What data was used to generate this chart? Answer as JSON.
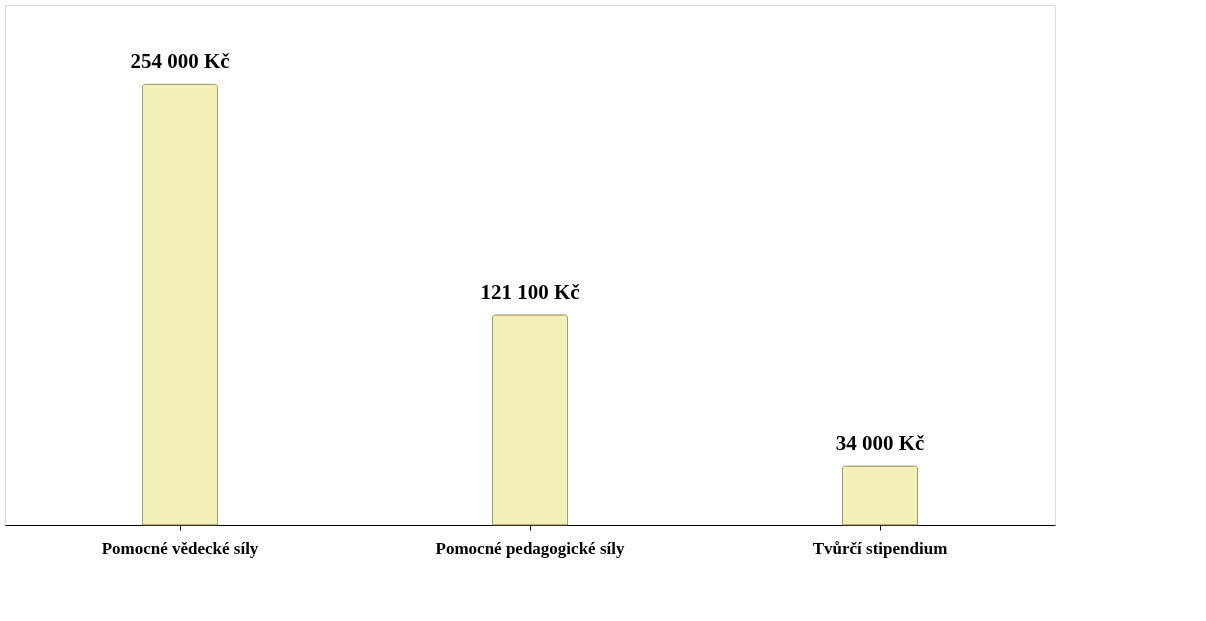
{
  "chart_data": {
    "type": "bar",
    "categories": [
      "Pomocné vědecké síly",
      "Pomocné pedagogické síly",
      "Tvůrčí stipendium"
    ],
    "values": [
      254000,
      121100,
      34000
    ],
    "value_labels": [
      "254 000 Kč",
      "121 100 Kč",
      "34 000 Kč"
    ],
    "color": "#f2f0b6",
    "grid": false
  }
}
